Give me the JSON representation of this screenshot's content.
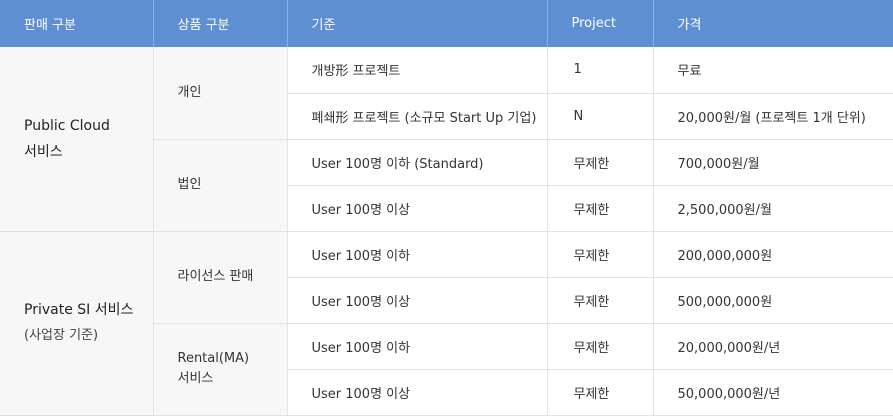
{
  "header": {
    "sale_type": "판매 구분",
    "product_type": "상품 구분",
    "criteria": "기준",
    "project": "Project",
    "price": "가격"
  },
  "groups": [
    {
      "sale_name": "Public Cloud",
      "sale_name_line2": "서비스",
      "sale_sub": "",
      "products": [
        {
          "name": "개인",
          "name_line2": "",
          "rows": [
            {
              "criteria": "개방形 프로젝트",
              "project": "1",
              "price": "무료"
            },
            {
              "criteria": "폐쇄形 프로젝트 (소규모 Start Up 기업)",
              "project": "N",
              "price": "20,000원/월  (프로젝트 1개 단위)"
            }
          ]
        },
        {
          "name": "법인",
          "name_line2": "",
          "rows": [
            {
              "criteria": "User 100명 이하 (Standard)",
              "project": "무제한",
              "price": "700,000원/월"
            },
            {
              "criteria": "User 100명 이상",
              "project": "무제한",
              "price": "2,500,000원/월"
            }
          ]
        }
      ]
    },
    {
      "sale_name": "Private SI 서비스",
      "sale_name_line2": "",
      "sale_sub": "(사업장 기준)",
      "products": [
        {
          "name": "라이선스 판매",
          "name_line2": "",
          "rows": [
            {
              "criteria": "User 100명 이하",
              "project": "무제한",
              "price": "200,000,000원"
            },
            {
              "criteria": "User 100명 이상",
              "project": "무제한",
              "price": "500,000,000원"
            }
          ]
        },
        {
          "name": "Rental(MA)",
          "name_line2": "서비스",
          "rows": [
            {
              "criteria": "User 100명 이하",
              "project": "무제한",
              "price": "20,000,000원/년"
            },
            {
              "criteria": "User 100명 이상",
              "project": "무제한",
              "price": "50,000,000원/년"
            }
          ]
        }
      ]
    }
  ],
  "colors": {
    "header_bg": "#5f8fd3",
    "header_text": "#ffffff",
    "group_bg": "#f7f7f7",
    "border": "#e3e3e3"
  }
}
